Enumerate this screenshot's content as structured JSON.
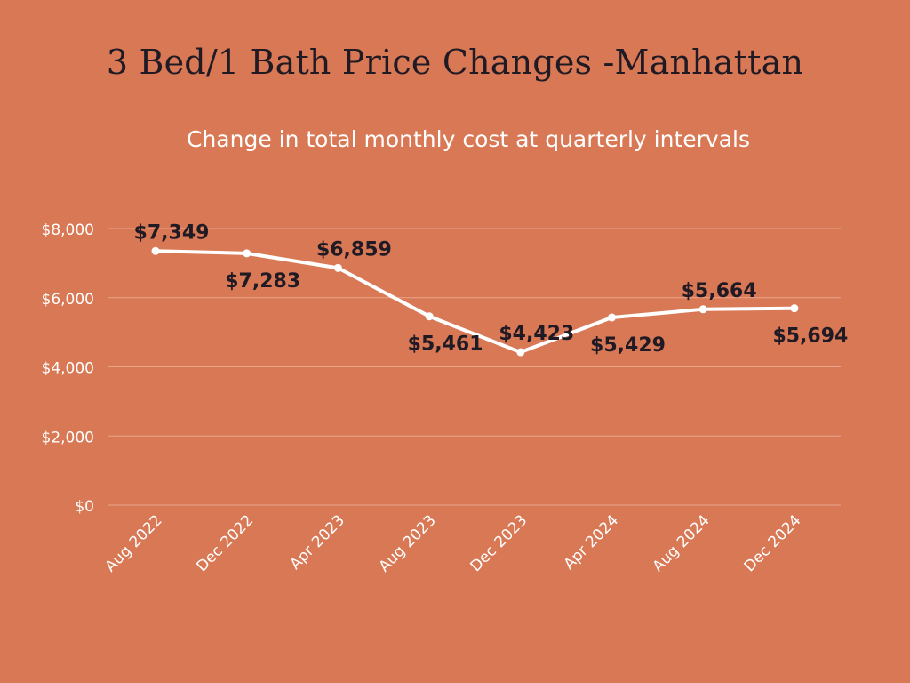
{
  "chart_data": {
    "type": "line",
    "title": "3 Bed/1 Bath Price Changes -Manhattan",
    "subtitle": "Change in total monthly cost at quarterly intervals",
    "categories": [
      "Aug 2022",
      "Dec 2022",
      "Apr 2023",
      "Aug 2023",
      "Dec 2023",
      "Apr 2024",
      "Aug 2024",
      "Dec 2024"
    ],
    "values": [
      7349,
      7283,
      6859,
      5461,
      4423,
      5429,
      5664,
      5694
    ],
    "data_labels": [
      "$7,349",
      "$7,283",
      "$6,859",
      "$5,461",
      "$4,423",
      "$5,429",
      "$5,664",
      "$5,694"
    ],
    "label_positions": [
      "above",
      "below",
      "above",
      "below",
      "above",
      "below",
      "above",
      "below"
    ],
    "y_ticks": [
      0,
      2000,
      4000,
      6000,
      8000
    ],
    "y_tick_labels": [
      "$0",
      "$2,000",
      "$4,000",
      "$6,000",
      "$8,000"
    ],
    "ylim": [
      0,
      8000
    ],
    "xlabel": "",
    "ylabel": "",
    "grid": true,
    "legend": "none",
    "colors": {
      "background": "#D87855",
      "line": "#ffffff",
      "grid": "#E9A68C",
      "data_label": "#1f1a24",
      "tick_label": "#ffffff"
    }
  }
}
